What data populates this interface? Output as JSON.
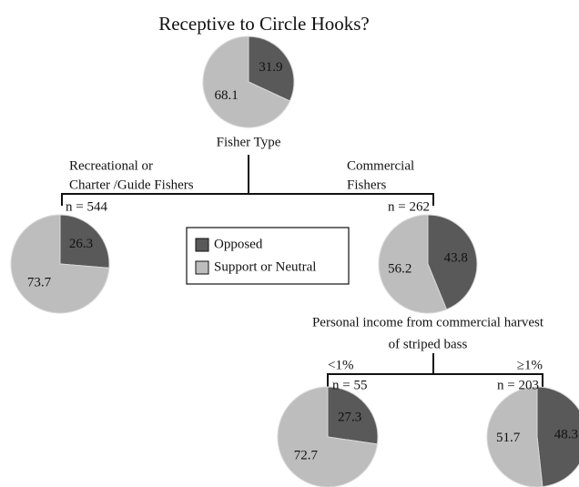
{
  "title": "Receptive to Circle Hooks?",
  "legend": [
    {
      "name": "Opposed",
      "color": "#595959"
    },
    {
      "name": "Support or Neutral",
      "color": "#bdbdbd"
    }
  ],
  "pies": [
    {
      "values": [
        31.9,
        68.1
      ]
    },
    {
      "values": [
        26.3,
        73.7
      ]
    },
    {
      "values": [
        43.8,
        56.2
      ]
    },
    {
      "values": [
        27.3,
        72.7
      ]
    },
    {
      "values": [
        48.3,
        51.7
      ]
    }
  ],
  "splits": [
    {
      "label": [
        "Fisher Type"
      ],
      "branches": [
        {
          "label": [
            "Recreational or",
            "Charter /Guide Fishers"
          ],
          "n": "n = 544"
        },
        {
          "label": [
            "Commercial",
            "Fishers"
          ],
          "n": "n = 262"
        }
      ]
    },
    {
      "label": [
        "Personal income from commercial harvest",
        "of striped bass"
      ],
      "branches": [
        {
          "label": [
            "<1%"
          ],
          "n": "n = 55"
        },
        {
          "label": [
            "≥1%"
          ],
          "n": "n = 203"
        }
      ]
    }
  ]
}
